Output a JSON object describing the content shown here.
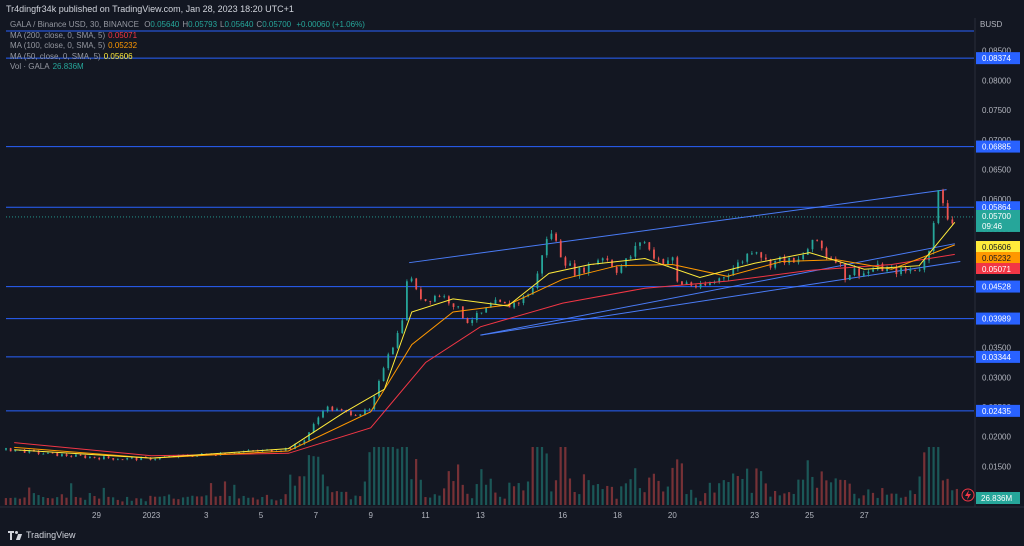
{
  "header": {
    "published": "Tr4dingfr34k published on TradingView.com, Jan 28, 2023 18:20 UTC+1"
  },
  "legend": {
    "symbol_line": "GALA / Binance USD, 30, BINANCE",
    "ohlc": [
      {
        "k": "O",
        "v": "0.05640"
      },
      {
        "k": "H",
        "v": "0.05793"
      },
      {
        "k": "L",
        "v": "0.05640"
      },
      {
        "k": "C",
        "v": "0.05700"
      }
    ],
    "change": "+0.00060 (+1.06%)",
    "ma200": {
      "label": "MA (200, close, 0, SMA, 5)",
      "value": "0.05071",
      "color": "#f23645"
    },
    "ma100": {
      "label": "MA (100, close, 0, SMA, 5)",
      "value": "0.05232",
      "color": "#ff9800"
    },
    "ma50": {
      "label": "MA (50, close, 0, SMA, 5)",
      "value": "0.05606",
      "color": "#ffeb3b"
    },
    "vol": {
      "label": "Vol · GALA",
      "value": "26.836M",
      "color": "#26a69a"
    }
  },
  "colors": {
    "background": "#131722",
    "up": "#26a69a",
    "down": "#ef5350",
    "hline": "#2962ff",
    "channel": "#4a7cf7",
    "text": "#b2b5be"
  },
  "footer": {
    "brand": "TradingView"
  },
  "chart_data": {
    "type": "candlestick",
    "symbol": "GALA / Binance USD",
    "interval": "30",
    "exchange": "BINANCE",
    "currency": "BUSD",
    "y_scale": "linear",
    "ylim": [
      0.0085,
      0.0905
    ],
    "y_ticks": [
      "0.08500",
      "0.08000",
      "0.07500",
      "0.07000",
      "0.06500",
      "0.06000",
      "0.05500",
      "0.05000",
      "0.04500",
      "0.04000",
      "0.03500",
      "0.03000",
      "0.02500",
      "0.02000",
      "0.01500"
    ],
    "x_ticks": [
      "29",
      "2023",
      "3",
      "5",
      "7",
      "9",
      "11",
      "13",
      "16",
      "18",
      "20",
      "23",
      "25",
      "27"
    ],
    "x_tick_days": [
      -2,
      0,
      2,
      4,
      6,
      8,
      10,
      12,
      15,
      17,
      19,
      22,
      24,
      26
    ],
    "price_path": [
      [
        -5.0,
        0.0178
      ],
      [
        -4.0,
        0.0172
      ],
      [
        -3.0,
        0.0168
      ],
      [
        -2.0,
        0.0165
      ],
      [
        -1.0,
        0.0163
      ],
      [
        0.0,
        0.0163
      ],
      [
        1.0,
        0.0167
      ],
      [
        2.0,
        0.017
      ],
      [
        3.0,
        0.0174
      ],
      [
        4.0,
        0.0176
      ],
      [
        5.0,
        0.018
      ],
      [
        5.5,
        0.019
      ],
      [
        6.0,
        0.0225
      ],
      [
        6.3,
        0.025
      ],
      [
        6.7,
        0.0245
      ],
      [
        7.0,
        0.0242
      ],
      [
        7.5,
        0.0238
      ],
      [
        8.0,
        0.0245
      ],
      [
        8.3,
        0.029
      ],
      [
        8.6,
        0.034
      ],
      [
        8.9,
        0.036
      ],
      [
        9.2,
        0.041
      ],
      [
        9.4,
        0.049
      ],
      [
        9.6,
        0.0445
      ],
      [
        10.0,
        0.043
      ],
      [
        10.5,
        0.044
      ],
      [
        11.0,
        0.0425
      ],
      [
        11.5,
        0.0395
      ],
      [
        12.0,
        0.0405
      ],
      [
        12.5,
        0.0425
      ],
      [
        13.0,
        0.042
      ],
      [
        13.5,
        0.043
      ],
      [
        14.0,
        0.0455
      ],
      [
        14.3,
        0.052
      ],
      [
        14.6,
        0.0545
      ],
      [
        15.0,
        0.05
      ],
      [
        15.5,
        0.0475
      ],
      [
        16.0,
        0.049
      ],
      [
        16.5,
        0.0505
      ],
      [
        17.0,
        0.048
      ],
      [
        17.5,
        0.0505
      ],
      [
        17.9,
        0.0535
      ],
      [
        18.2,
        0.051
      ],
      [
        18.6,
        0.0495
      ],
      [
        19.0,
        0.05
      ],
      [
        19.2,
        0.0455
      ],
      [
        19.5,
        0.046
      ],
      [
        20.0,
        0.045
      ],
      [
        20.5,
        0.046
      ],
      [
        21.0,
        0.0475
      ],
      [
        21.5,
        0.0495
      ],
      [
        22.0,
        0.052
      ],
      [
        22.5,
        0.049
      ],
      [
        23.0,
        0.05
      ],
      [
        23.5,
        0.049
      ],
      [
        24.0,
        0.052
      ],
      [
        24.3,
        0.053
      ],
      [
        24.6,
        0.0505
      ],
      [
        25.0,
        0.05
      ],
      [
        25.3,
        0.047
      ],
      [
        25.6,
        0.048
      ],
      [
        26.0,
        0.0475
      ],
      [
        26.5,
        0.0485
      ],
      [
        27.0,
        0.048
      ],
      [
        27.5,
        0.0478
      ],
      [
        28.0,
        0.0485
      ],
      [
        28.3,
        0.05
      ],
      [
        28.5,
        0.056
      ],
      [
        28.7,
        0.061
      ],
      [
        28.9,
        0.0585
      ],
      [
        29.1,
        0.056
      ],
      [
        29.3,
        0.057
      ]
    ],
    "moving_averages": [
      {
        "name": "MA 200",
        "color": "#f23645",
        "points": [
          [
            -5,
            0.019
          ],
          [
            0,
            0.0168
          ],
          [
            5,
            0.0172
          ],
          [
            8,
            0.0215
          ],
          [
            10,
            0.0325
          ],
          [
            12,
            0.0385
          ],
          [
            15,
            0.0425
          ],
          [
            18,
            0.045
          ],
          [
            21,
            0.0462
          ],
          [
            24,
            0.048
          ],
          [
            27,
            0.049
          ],
          [
            29.3,
            0.0507
          ]
        ]
      },
      {
        "name": "MA 100",
        "color": "#ff9800",
        "points": [
          [
            -5,
            0.0182
          ],
          [
            0,
            0.0164
          ],
          [
            5,
            0.0176
          ],
          [
            8,
            0.0242
          ],
          [
            9.5,
            0.0355
          ],
          [
            11,
            0.041
          ],
          [
            13,
            0.0422
          ],
          [
            15,
            0.0465
          ],
          [
            17,
            0.0488
          ],
          [
            19,
            0.049
          ],
          [
            21,
            0.047
          ],
          [
            23,
            0.0495
          ],
          [
            25,
            0.0498
          ],
          [
            27,
            0.0482
          ],
          [
            29.3,
            0.0523
          ]
        ]
      },
      {
        "name": "MA 50",
        "color": "#ffeb3b",
        "points": [
          [
            -5,
            0.0178
          ],
          [
            0,
            0.0164
          ],
          [
            5,
            0.018
          ],
          [
            7,
            0.024
          ],
          [
            8.5,
            0.028
          ],
          [
            9.5,
            0.041
          ],
          [
            11,
            0.0432
          ],
          [
            13,
            0.042
          ],
          [
            14.5,
            0.0475
          ],
          [
            16,
            0.049
          ],
          [
            18,
            0.05
          ],
          [
            20,
            0.0468
          ],
          [
            22,
            0.0492
          ],
          [
            24,
            0.051
          ],
          [
            26,
            0.0482
          ],
          [
            28,
            0.0488
          ],
          [
            29.3,
            0.0561
          ]
        ]
      }
    ],
    "horizontal_levels": [
      "0.08374",
      "0.06885",
      "0.05864",
      "0.04528",
      "0.03989",
      "0.03344",
      "0.02435"
    ],
    "channel": {
      "upper": [
        [
          9.4,
          0.0493
        ],
        [
          29.0,
          0.0616
        ]
      ],
      "lower": [
        [
          12.0,
          0.0371
        ],
        [
          29.5,
          0.0495
        ]
      ],
      "inner": [
        [
          12.0,
          0.0371
        ],
        [
          29.3,
          0.0525
        ]
      ]
    },
    "price_labels": [
      {
        "value": "0.05864",
        "kind": "level"
      },
      {
        "value": "0.05700",
        "kind": "last",
        "sub": "09:46"
      },
      {
        "value": "0.05606",
        "kind": "ma50"
      },
      {
        "value": "0.05232",
        "kind": "ma100"
      },
      {
        "value": "0.05071",
        "kind": "ma200"
      }
    ],
    "last_price": "0.05700",
    "countdown": "09:46",
    "volume_label": "26.836M"
  }
}
